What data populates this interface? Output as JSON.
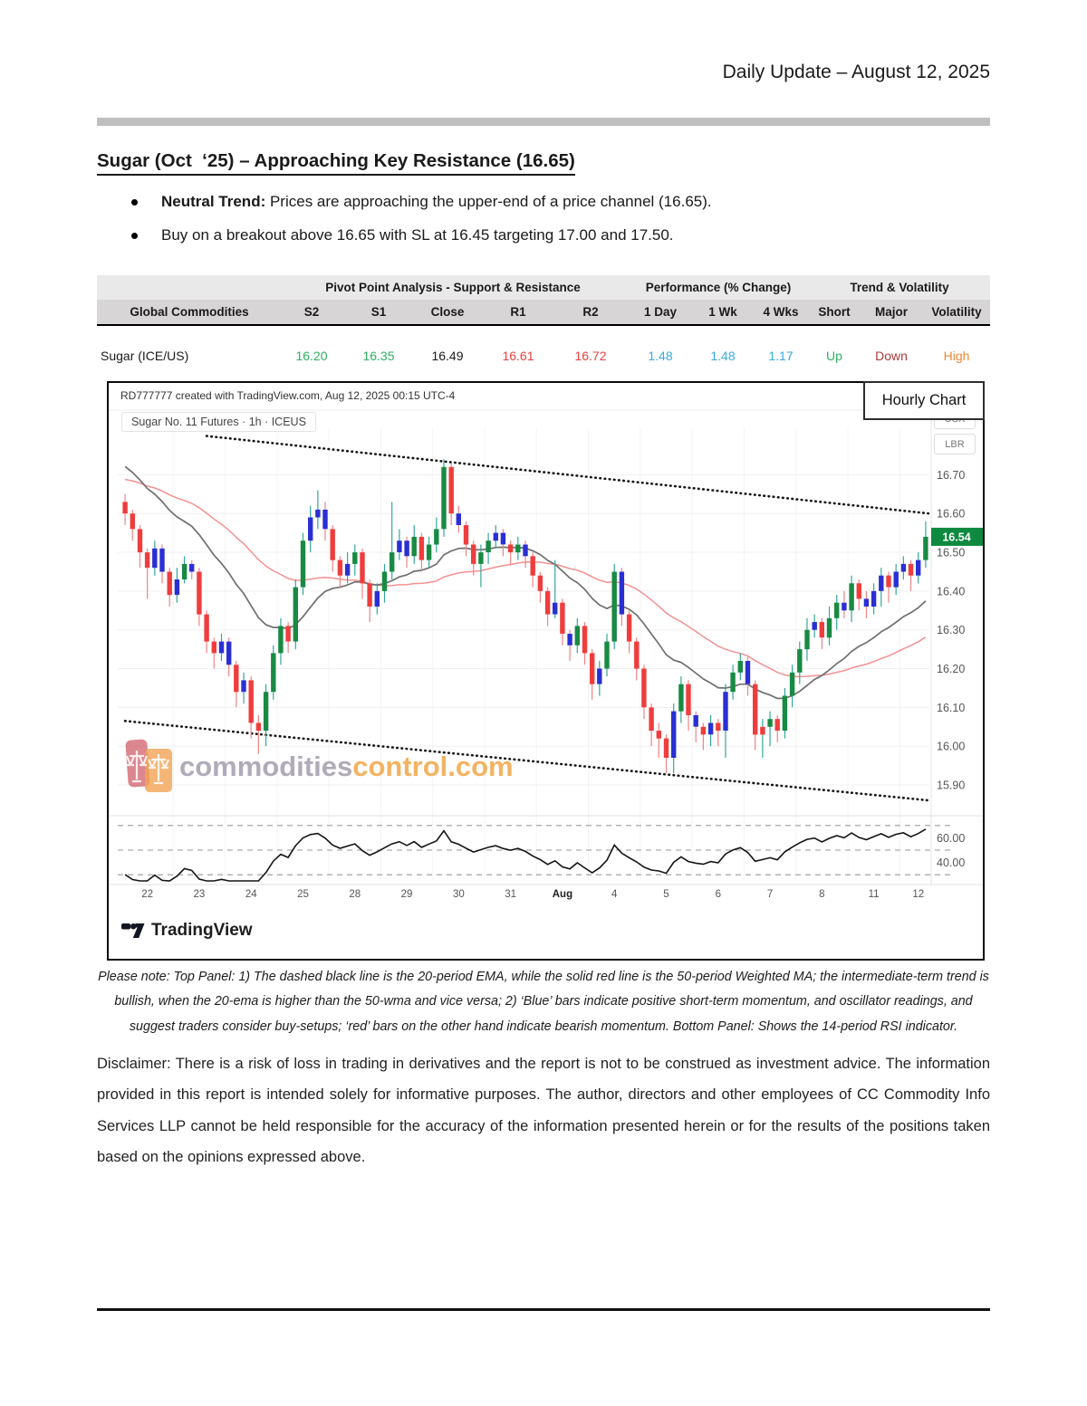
{
  "page": {
    "date_header": "Daily Update – August 12, 2025"
  },
  "article": {
    "title": "Sugar (Oct  ‘25) – Approaching Key Resistance (16.65)",
    "bullets": [
      {
        "bold": "Neutral Trend:",
        "text": " Prices are approaching the upper-end of a price channel (16.65)."
      },
      {
        "bold": "",
        "text": "Buy on a breakout above 16.65 with SL at 16.45 targeting 17.00 and 17.50."
      }
    ]
  },
  "table": {
    "group_headers": [
      {
        "label": "",
        "span": 1
      },
      {
        "label": "Pivot Point Analysis - Support & Resistance",
        "span": 5
      },
      {
        "label": "Performance (% Change)",
        "span": 3
      },
      {
        "label": "Trend & Volatility",
        "span": 3
      }
    ],
    "columns": [
      "Global Commodities",
      "S2",
      "S1",
      "Close",
      "R1",
      "R2",
      "1 Day",
      "1 Wk",
      "4 Wks",
      "Short",
      "Major",
      "Volatility"
    ],
    "rows": [
      {
        "cells": [
          {
            "text": "Sugar (ICE/US)",
            "color": "#1a1a1a",
            "align": "left"
          },
          {
            "text": "16.20",
            "color": "#2eaf62"
          },
          {
            "text": "16.35",
            "color": "#2eaf62"
          },
          {
            "text": "16.49",
            "color": "#1a1a1a"
          },
          {
            "text": "16.61",
            "color": "#e84040"
          },
          {
            "text": "16.72",
            "color": "#e84040"
          },
          {
            "text": "1.48",
            "color": "#35aade"
          },
          {
            "text": "1.48",
            "color": "#35aade"
          },
          {
            "text": "1.17",
            "color": "#35aade"
          },
          {
            "text": "Up",
            "color": "#2eaf62"
          },
          {
            "text": "Down",
            "color": "#b03a36"
          },
          {
            "text": "High",
            "color": "#ef8733"
          }
        ]
      }
    ]
  },
  "chart": {
    "credit": "RD777777 created with TradingView.com, Aug 12, 2025 00:15 UTC-4",
    "symbol": "Sugar No. 11 Futures · 1h · ICEUS",
    "panel_label": "Hourly Chart",
    "axis_units": [
      "USX",
      "LBR"
    ],
    "watermark": {
      "gray": "commodities",
      "orange": "control.com"
    },
    "logo_text": "TradingView"
  },
  "chart_data": {
    "type": "candlestick+rsi",
    "title": "Sugar No. 11 Futures · 1h · ICEUS",
    "last_price": "16.54",
    "last_price_badge_color": "#0d8a40",
    "price_range": [
      15.83,
      16.82
    ],
    "price_gridlines": [
      16.7,
      16.6,
      16.5,
      16.4,
      16.3,
      16.2,
      16.1,
      16.0,
      15.9
    ],
    "price_tick_labels": [
      "16.70",
      "16.60",
      "16.50",
      "16.40",
      "16.30",
      "16.20",
      "16.10",
      "16.00",
      "15.90"
    ],
    "rsi_range": [
      25,
      75
    ],
    "rsi_levels": [
      70,
      50,
      30
    ],
    "rsi_tick_labels": [
      {
        "text": "60.00",
        "value": 60
      },
      {
        "text": "40.00",
        "value": 40
      }
    ],
    "rsi_period": 14,
    "ema_period": 20,
    "wma_period": 50,
    "warmup": {
      "count": 50,
      "points": [
        16.55,
        16.62,
        16.8
      ]
    },
    "channel": {
      "upper": {
        "bar_start": 11,
        "price_start": 16.8,
        "price_end": 16.6
      },
      "lower": {
        "bar_start": 0,
        "price_start": 16.065,
        "price_end": 15.86
      }
    },
    "x_labels": [
      {
        "t": "22",
        "bar": 3
      },
      {
        "t": "23",
        "bar": 10
      },
      {
        "t": "24",
        "bar": 17
      },
      {
        "t": "25",
        "bar": 24
      },
      {
        "t": "28",
        "bar": 31
      },
      {
        "t": "29",
        "bar": 38
      },
      {
        "t": "30",
        "bar": 45
      },
      {
        "t": "31",
        "bar": 52
      },
      {
        "t": "Aug",
        "bar": 59,
        "bold": true
      },
      {
        "t": "4",
        "bar": 66
      },
      {
        "t": "5",
        "bar": 73
      },
      {
        "t": "6",
        "bar": 80
      },
      {
        "t": "7",
        "bar": 87
      },
      {
        "t": "8",
        "bar": 94
      },
      {
        "t": "11",
        "bar": 101
      },
      {
        "t": "12",
        "bar": 107
      }
    ],
    "colors": {
      "up_body": "#188a43",
      "down_body": "#ef3d3d",
      "momo_body": "#2a2fd4",
      "wick_up": "#34a79b",
      "wick_down": "#f08484",
      "ema": "#6f6f6f",
      "wma": "#f49090",
      "channel": "#141414",
      "rsi": "#141414"
    },
    "candles": [
      [
        16.63,
        16.65,
        16.57,
        16.6,
        "r"
      ],
      [
        16.6,
        16.61,
        16.53,
        16.56,
        "r"
      ],
      [
        16.56,
        16.57,
        16.46,
        16.5,
        "r"
      ],
      [
        16.5,
        16.51,
        16.38,
        16.46,
        "r"
      ],
      [
        16.46,
        16.53,
        16.44,
        16.51,
        "b"
      ],
      [
        16.51,
        16.52,
        16.42,
        16.45,
        "b"
      ],
      [
        16.45,
        16.46,
        16.36,
        16.39,
        "r"
      ],
      [
        16.39,
        16.46,
        16.37,
        16.43,
        "b"
      ],
      [
        16.43,
        16.49,
        16.42,
        16.47,
        "g"
      ],
      [
        16.47,
        16.48,
        16.43,
        16.45,
        "b"
      ],
      [
        16.45,
        16.46,
        16.31,
        16.34,
        "r"
      ],
      [
        16.34,
        16.35,
        16.24,
        16.27,
        "r"
      ],
      [
        16.27,
        16.28,
        16.2,
        16.24,
        "r"
      ],
      [
        16.24,
        16.29,
        16.22,
        16.27,
        "b"
      ],
      [
        16.27,
        16.28,
        16.18,
        16.21,
        "b"
      ],
      [
        16.21,
        16.22,
        16.1,
        16.14,
        "r"
      ],
      [
        16.14,
        16.19,
        16.11,
        16.17,
        "b"
      ],
      [
        16.17,
        16.18,
        16.02,
        16.06,
        "r"
      ],
      [
        16.06,
        16.08,
        15.98,
        16.04,
        "r"
      ],
      [
        16.04,
        16.16,
        16.0,
        16.14,
        "g"
      ],
      [
        16.14,
        16.26,
        16.12,
        16.24,
        "g"
      ],
      [
        16.24,
        16.33,
        16.21,
        16.31,
        "g"
      ],
      [
        16.31,
        16.32,
        16.24,
        16.27,
        "r"
      ],
      [
        16.27,
        16.43,
        16.25,
        16.41,
        "g"
      ],
      [
        16.41,
        16.55,
        16.39,
        16.53,
        "g"
      ],
      [
        16.53,
        16.62,
        16.5,
        16.59,
        "b"
      ],
      [
        16.59,
        16.66,
        16.56,
        16.61,
        "b"
      ],
      [
        16.61,
        16.63,
        16.53,
        16.56,
        "b"
      ],
      [
        16.56,
        16.57,
        16.45,
        16.48,
        "r"
      ],
      [
        16.48,
        16.49,
        16.41,
        16.44,
        "r"
      ],
      [
        16.44,
        16.5,
        16.42,
        16.47,
        "b"
      ],
      [
        16.47,
        16.52,
        16.44,
        16.5,
        "g"
      ],
      [
        16.5,
        16.51,
        16.38,
        16.42,
        "r"
      ],
      [
        16.42,
        16.43,
        16.32,
        16.36,
        "r"
      ],
      [
        16.36,
        16.42,
        16.34,
        16.4,
        "b"
      ],
      [
        16.4,
        16.47,
        16.37,
        16.45,
        "g"
      ],
      [
        16.45,
        16.63,
        16.43,
        16.5,
        "g"
      ],
      [
        16.5,
        16.56,
        16.48,
        16.53,
        "b"
      ],
      [
        16.53,
        16.54,
        16.46,
        16.49,
        "b"
      ],
      [
        16.49,
        16.57,
        16.47,
        16.54,
        "g"
      ],
      [
        16.54,
        16.55,
        16.45,
        16.48,
        "r"
      ],
      [
        16.48,
        16.54,
        16.46,
        16.52,
        "g"
      ],
      [
        16.52,
        16.59,
        16.5,
        16.56,
        "g"
      ],
      [
        16.56,
        16.74,
        16.54,
        16.72,
        "g"
      ],
      [
        16.72,
        16.73,
        16.57,
        16.6,
        "r"
      ],
      [
        16.6,
        16.62,
        16.55,
        16.57,
        "b"
      ],
      [
        16.57,
        16.58,
        16.49,
        16.52,
        "r"
      ],
      [
        16.52,
        16.53,
        16.44,
        16.47,
        "r"
      ],
      [
        16.47,
        16.52,
        16.41,
        16.5,
        "g"
      ],
      [
        16.5,
        16.55,
        16.47,
        16.53,
        "g"
      ],
      [
        16.53,
        16.57,
        16.51,
        16.55,
        "b"
      ],
      [
        16.55,
        16.56,
        16.49,
        16.52,
        "b"
      ],
      [
        16.52,
        16.53,
        16.47,
        16.5,
        "r"
      ],
      [
        16.5,
        16.54,
        16.48,
        16.52,
        "g"
      ],
      [
        16.52,
        16.53,
        16.46,
        16.49,
        "b"
      ],
      [
        16.49,
        16.5,
        16.41,
        16.44,
        "r"
      ],
      [
        16.44,
        16.45,
        16.37,
        16.4,
        "r"
      ],
      [
        16.4,
        16.41,
        16.31,
        16.34,
        "r"
      ],
      [
        16.34,
        16.48,
        16.33,
        16.37,
        "b"
      ],
      [
        16.37,
        16.38,
        16.26,
        16.29,
        "r"
      ],
      [
        16.29,
        16.3,
        16.22,
        16.26,
        "b"
      ],
      [
        16.26,
        16.33,
        16.24,
        16.31,
        "g"
      ],
      [
        16.31,
        16.32,
        16.21,
        16.24,
        "r"
      ],
      [
        16.24,
        16.25,
        16.12,
        16.16,
        "r"
      ],
      [
        16.16,
        16.22,
        16.13,
        16.2,
        "b"
      ],
      [
        16.2,
        16.29,
        16.18,
        16.27,
        "g"
      ],
      [
        16.27,
        16.47,
        16.25,
        16.45,
        "g"
      ],
      [
        16.45,
        16.46,
        16.31,
        16.34,
        "b"
      ],
      [
        16.34,
        16.35,
        16.24,
        16.27,
        "r"
      ],
      [
        16.27,
        16.28,
        16.17,
        16.2,
        "r"
      ],
      [
        16.2,
        16.21,
        16.07,
        16.1,
        "r"
      ],
      [
        16.1,
        16.11,
        16.0,
        16.04,
        "r"
      ],
      [
        16.04,
        16.06,
        15.97,
        16.02,
        "r"
      ],
      [
        16.02,
        16.03,
        15.93,
        15.97,
        "r"
      ],
      [
        15.97,
        16.11,
        15.93,
        16.09,
        "b"
      ],
      [
        16.09,
        16.18,
        16.06,
        16.16,
        "g"
      ],
      [
        16.16,
        16.17,
        16.04,
        16.08,
        "r"
      ],
      [
        16.08,
        16.09,
        16.01,
        16.05,
        "b"
      ],
      [
        16.05,
        16.06,
        15.99,
        16.03,
        "r"
      ],
      [
        16.03,
        16.08,
        16.0,
        16.06,
        "b"
      ],
      [
        16.06,
        16.07,
        16.0,
        16.04,
        "r"
      ],
      [
        16.04,
        16.16,
        15.97,
        16.14,
        "b"
      ],
      [
        16.14,
        16.21,
        16.12,
        16.19,
        "g"
      ],
      [
        16.19,
        16.24,
        16.17,
        16.22,
        "g"
      ],
      [
        16.22,
        16.23,
        16.13,
        16.16,
        "b"
      ],
      [
        16.16,
        16.17,
        15.99,
        16.03,
        "r"
      ],
      [
        16.03,
        16.07,
        15.97,
        16.05,
        "r"
      ],
      [
        16.05,
        16.09,
        16.0,
        16.07,
        "g"
      ],
      [
        16.07,
        16.08,
        16.01,
        16.04,
        "r"
      ],
      [
        16.04,
        16.15,
        16.02,
        16.13,
        "g"
      ],
      [
        16.13,
        16.21,
        16.1,
        16.19,
        "g"
      ],
      [
        16.19,
        16.27,
        16.16,
        16.25,
        "g"
      ],
      [
        16.25,
        16.33,
        16.22,
        16.3,
        "g"
      ],
      [
        16.3,
        16.34,
        16.28,
        16.32,
        "b"
      ],
      [
        16.32,
        16.33,
        16.25,
        16.28,
        "r"
      ],
      [
        16.28,
        16.36,
        16.26,
        16.33,
        "g"
      ],
      [
        16.33,
        16.39,
        16.3,
        16.37,
        "g"
      ],
      [
        16.37,
        16.4,
        16.33,
        16.35,
        "b"
      ],
      [
        16.35,
        16.44,
        16.32,
        16.42,
        "g"
      ],
      [
        16.42,
        16.43,
        16.35,
        16.38,
        "r"
      ],
      [
        16.38,
        16.4,
        16.33,
        16.36,
        "b"
      ],
      [
        16.36,
        16.42,
        16.34,
        16.4,
        "b"
      ],
      [
        16.4,
        16.46,
        16.36,
        16.44,
        "b"
      ],
      [
        16.44,
        16.45,
        16.37,
        16.41,
        "r"
      ],
      [
        16.41,
        16.47,
        16.39,
        16.45,
        "b"
      ],
      [
        16.45,
        16.49,
        16.43,
        16.47,
        "b"
      ],
      [
        16.47,
        16.48,
        16.4,
        16.44,
        "r"
      ],
      [
        16.44,
        16.5,
        16.42,
        16.48,
        "b"
      ],
      [
        16.48,
        16.58,
        16.46,
        16.54,
        "g"
      ]
    ]
  },
  "footnote": {
    "text": "Please note: Top Panel: 1) The dashed black line is the 20-period EMA, while the solid red line is the 50-period Weighted MA; the intermediate-term trend is bullish, when the 20-ema is higher than the 50-wma and vice versa; 2) ‘Blue’ bars indicate positive short-term momentum, and oscillator readings, and suggest traders consider buy-setups; ‘red’ bars on the other hand indicate bearish momentum. Bottom Panel: Shows the 14-period RSI indicator."
  },
  "disclaimer": {
    "text": "Disclaimer: There is a risk of loss in trading in derivatives and the report is not to be construed as investment advice. The information provided in this report is intended solely for informative purposes. The author, directors and other employees of CC Commodity Info Services LLP cannot be held responsible for the accuracy of the information presented herein or for the results of the positions taken based on the opinions expressed above."
  }
}
